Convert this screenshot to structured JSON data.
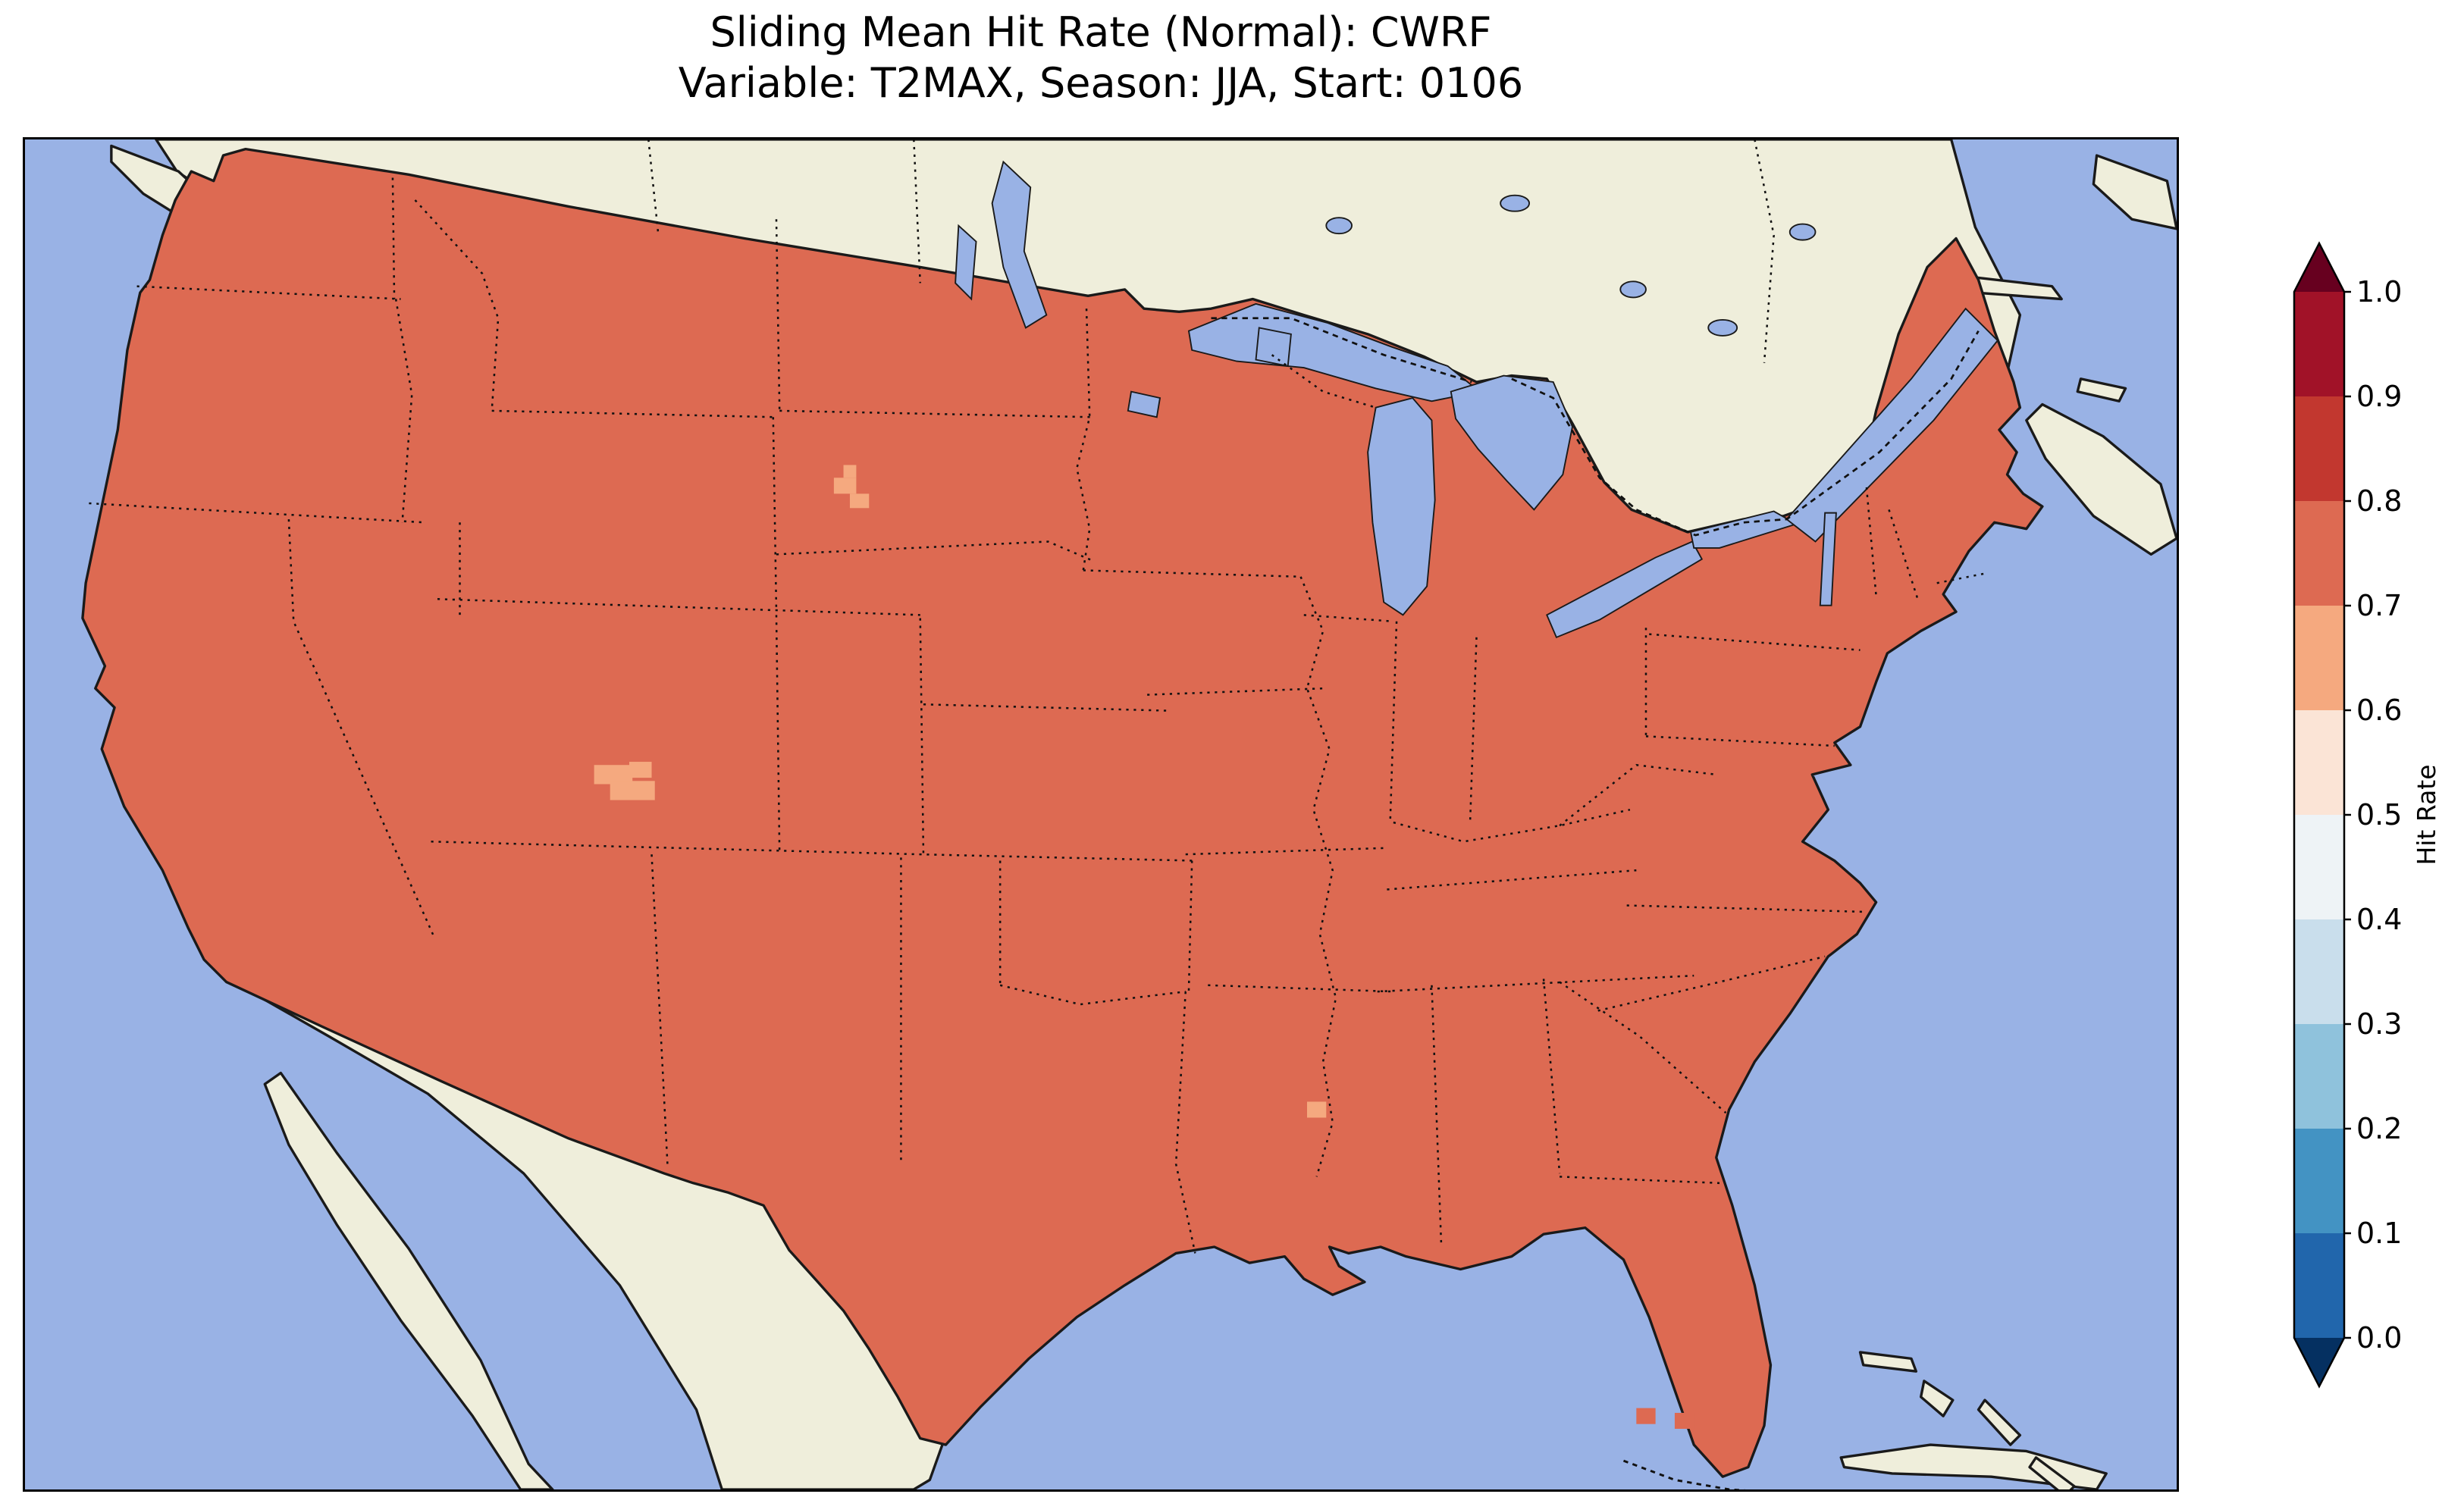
{
  "title": {
    "line1": "Sliding Mean Hit Rate (Normal): CWRF",
    "line2": "Variable: T2MAX, Season: JJA, Start: 0106"
  },
  "colors": {
    "ocean": "#99b2e5",
    "water": "#99b2e5",
    "land": "#efeedb",
    "conus": "#dd6a52",
    "patch": "#f5a97f",
    "coast": "#1a1a1a"
  },
  "colorbar": {
    "label": "Hit Rate",
    "ticks": [
      "0.0",
      "0.1",
      "0.2",
      "0.3",
      "0.4",
      "0.5",
      "0.6",
      "0.7",
      "0.8",
      "0.9",
      "1.0"
    ],
    "bin_colors": [
      "#2166ac",
      "#4393c3",
      "#8fc2dc",
      "#c9deec",
      "#eef3f6",
      "#fbe4d6",
      "#f5a97f",
      "#dd6a52",
      "#c2372f",
      "#a11228"
    ],
    "under_color": "#053061",
    "over_color": "#67001f"
  },
  "chart_data": {
    "type": "heatmap",
    "title": "Sliding Mean Hit Rate (Normal): CWRF",
    "subtitle": "Variable: T2MAX, Season: JJA, Start: 0106",
    "variable": "T2MAX",
    "season": "JJA",
    "start": "0106",
    "model": "CWRF",
    "colorbar_label": "Hit Rate",
    "colormap": "RdBu_r",
    "extend": "both",
    "value_range": [
      0.0,
      1.0
    ],
    "tick_step": 0.1,
    "legend_position": "right-vertical",
    "region_shown": "Contiguous United States with southern Canada, Mexico, Cuba and the Bahamas",
    "dominant_value": {
      "region": "nearly all of CONUS",
      "hit_rate_bin": [
        0.7,
        0.8
      ]
    },
    "anomalies": [
      {
        "region": "small patch in western South Dakota",
        "hit_rate_bin": [
          0.6,
          0.7
        ]
      },
      {
        "region": "patch in northwestern New Mexico",
        "hit_rate_bin": [
          0.6,
          0.7
        ]
      },
      {
        "region": "single cell in central Louisiana",
        "hit_rate_bin": [
          0.6,
          0.7
        ]
      },
      {
        "region": "isolated cells near the Florida Keys",
        "hit_rate_bin": [
          0.7,
          0.8
        ]
      }
    ]
  }
}
